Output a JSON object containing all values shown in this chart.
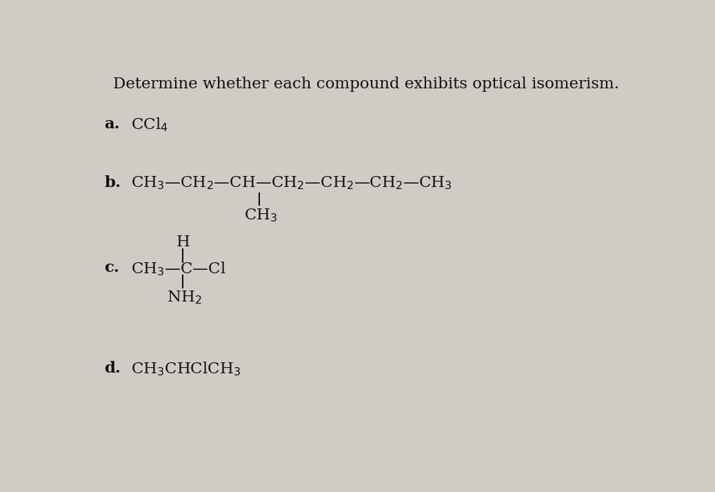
{
  "title": "Determine whether each compound exhibits optical isomerism.",
  "background_color": "#d0ccc5",
  "text_color": "#111111",
  "title_fontsize": 16.5,
  "label_fontsize": 16.5,
  "formula_fontsize": 16.5,
  "figsize": [
    10.37,
    7.13
  ],
  "dpi": 100,
  "a_label": "a.",
  "a_formula": "CCl$_4$",
  "b_label": "b.",
  "b_chain": "CH$_3$—CH$_2$—CH—CH$_2$—CH$_2$—CH$_2$—CH$_3$",
  "b_branch": "CH$_3$",
  "c_label": "c.",
  "c_top": "H",
  "c_horiz": "CH$_3$—C—Cl",
  "c_bottom": "NH$_2$",
  "d_label": "d.",
  "d_formula": "CH$_3$CHClCH$_3$"
}
